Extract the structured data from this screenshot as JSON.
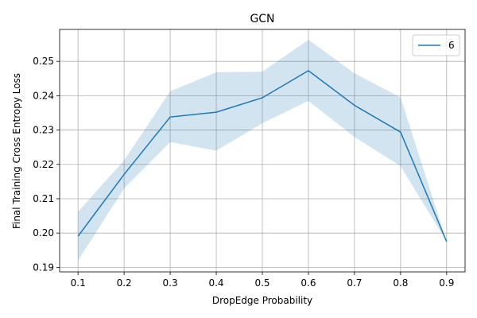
{
  "chart_data": {
    "type": "line",
    "title": "GCN",
    "xlabel": "DropEdge Probability",
    "ylabel": "Final Training Cross Entropy Loss",
    "x": [
      0.1,
      0.2,
      0.3,
      0.4,
      0.5,
      0.6,
      0.7,
      0.8,
      0.9
    ],
    "xticks": [
      "0.1",
      "0.2",
      "0.3",
      "0.4",
      "0.5",
      "0.6",
      "0.7",
      "0.8",
      "0.9"
    ],
    "yticks": [
      "0.19",
      "0.20",
      "0.21",
      "0.22",
      "0.23",
      "0.24",
      "0.25"
    ],
    "xlim": [
      0.06,
      0.94
    ],
    "ylim": [
      0.1887,
      0.2593
    ],
    "grid": true,
    "legend_position": "top-right",
    "series": [
      {
        "name": "6",
        "color": "#1f77b4",
        "band_color": "#1f77b4",
        "values": [
          0.1991,
          0.2171,
          0.2338,
          0.2352,
          0.2394,
          0.2473,
          0.2372,
          0.2294,
          0.1975
        ],
        "lower": [
          0.192,
          0.213,
          0.2265,
          0.224,
          0.232,
          0.2385,
          0.228,
          0.2195,
          0.1975
        ],
        "upper": [
          0.2062,
          0.2212,
          0.2413,
          0.2468,
          0.247,
          0.2563,
          0.2465,
          0.2395,
          0.1975
        ]
      }
    ]
  }
}
